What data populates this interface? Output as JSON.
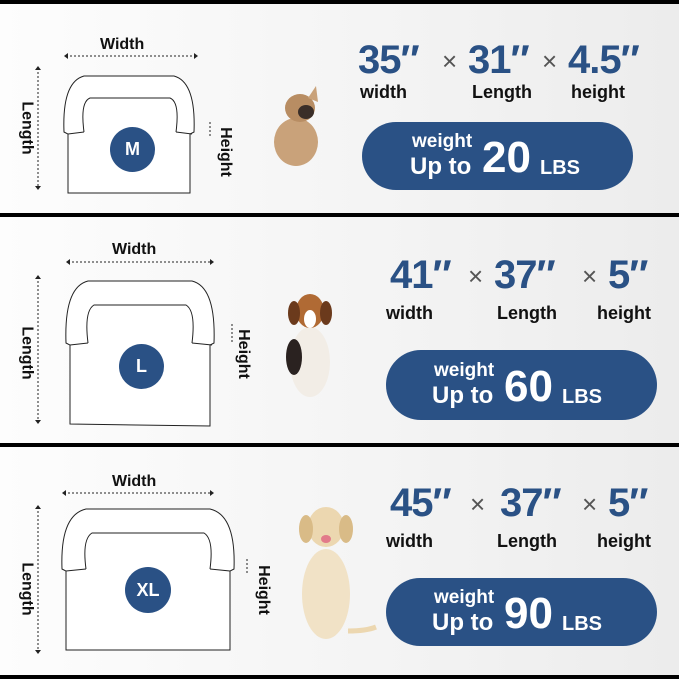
{
  "colors": {
    "accent": "#2a5185",
    "dog_tan": "#c9a27a"
  },
  "labels": {
    "width": "Width",
    "length": "Length",
    "height": "Height"
  },
  "sizes": [
    {
      "size": "M",
      "width": "35″",
      "length": "31″",
      "height": "4.5″",
      "width_label": "width",
      "length_label": "Length",
      "height_label": "height",
      "weight_label": "weight",
      "up_to": "Up to",
      "weight": "20",
      "unit": "LBS"
    },
    {
      "size": "L",
      "width": "41″",
      "length": "37″",
      "height": "5″",
      "width_label": "width",
      "length_label": "Length",
      "height_label": "height",
      "weight_label": "weight",
      "up_to": "Up to",
      "weight": "60",
      "unit": "LBS"
    },
    {
      "size": "XL",
      "width": "45″",
      "length": "37″",
      "height": "5″",
      "width_label": "width",
      "length_label": "Length",
      "height_label": "height",
      "weight_label": "weight",
      "up_to": "Up to",
      "weight": "90",
      "unit": "LBS"
    }
  ],
  "times": "×"
}
